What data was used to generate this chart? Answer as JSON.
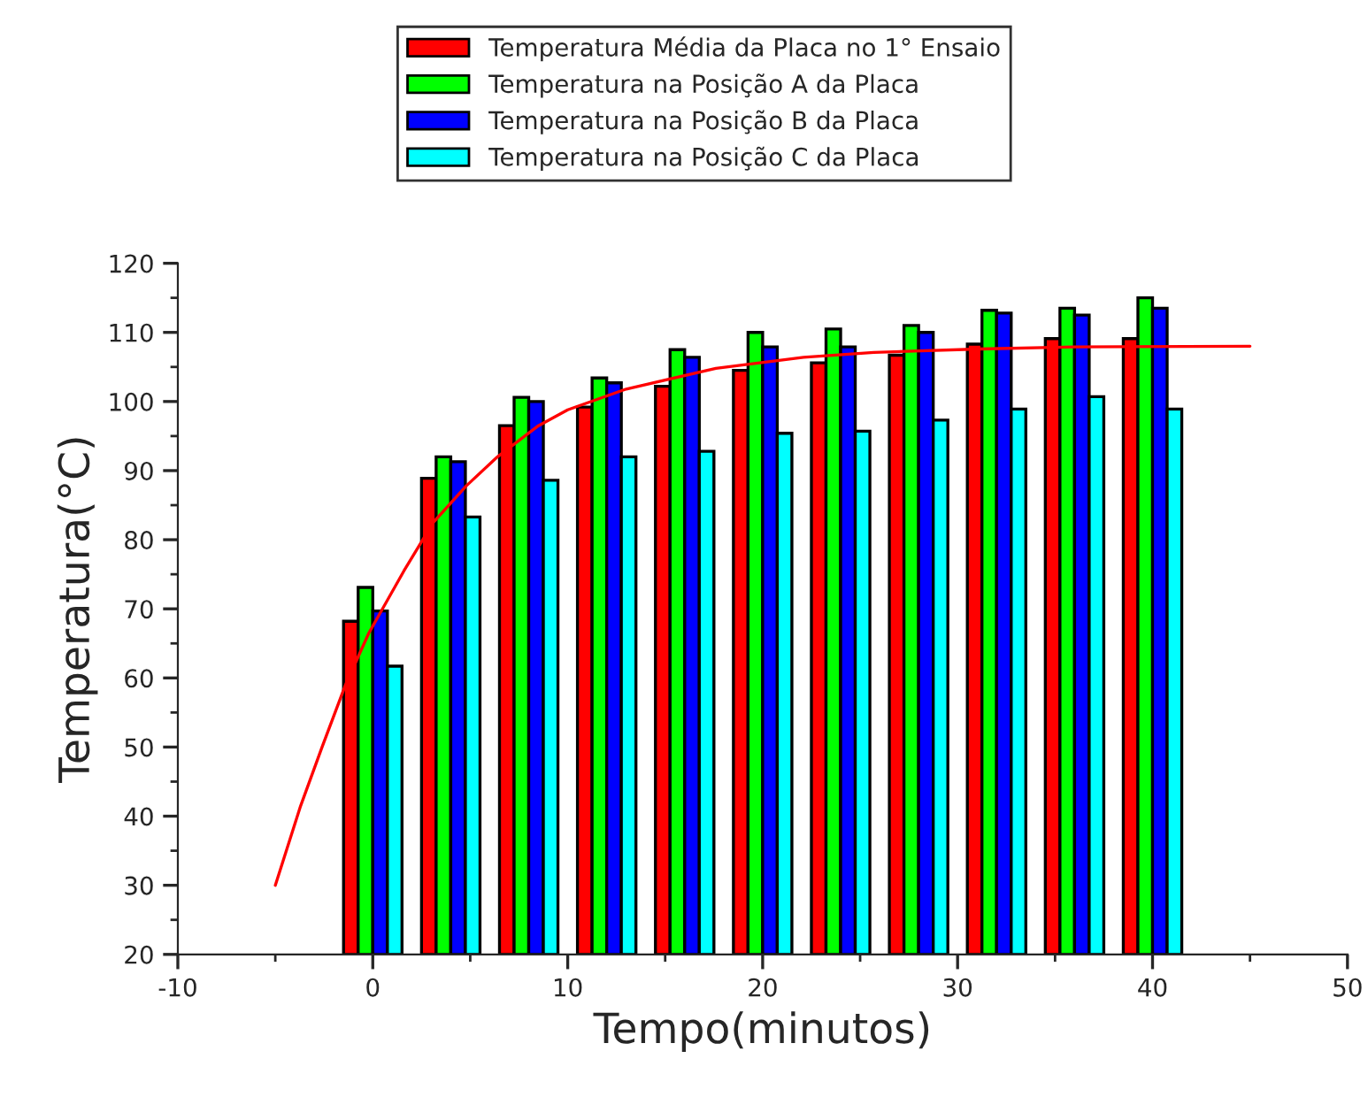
{
  "chart_data": {
    "type": "bar",
    "xlabel": "Tempo(minutos)",
    "ylabel": "Temperatura(°C)",
    "x": [
      0,
      4,
      8,
      12,
      16,
      20,
      24,
      28,
      32,
      36,
      40
    ],
    "series": [
      {
        "name": "Temperatura Média da Placa no 1° Ensaio",
        "color": "#ff0000",
        "values": [
          68.2,
          88.9,
          96.5,
          99.2,
          102.2,
          104.5,
          105.6,
          106.7,
          108.3,
          109.1,
          109.1
        ]
      },
      {
        "name": "Temperatura na Posição A da Placa",
        "color": "#00ff00",
        "values": [
          73.1,
          92.0,
          100.6,
          103.4,
          107.5,
          110.0,
          110.5,
          111.0,
          113.2,
          113.5,
          115.0
        ]
      },
      {
        "name": "Temperatura na Posição B da Placa",
        "color": "#0000ff",
        "values": [
          69.7,
          91.3,
          100.0,
          102.7,
          106.4,
          107.9,
          107.9,
          110.0,
          112.8,
          112.5,
          113.5
        ]
      },
      {
        "name": "Temperatura na Posição C da Placa",
        "color": "#00ffff",
        "values": [
          61.7,
          83.3,
          88.6,
          92.0,
          92.8,
          95.4,
          95.7,
          97.3,
          98.9,
          100.7,
          98.9
        ]
      },
      {
        "type": "line",
        "color": "#ff0000",
        "x": [
          -5,
          -3.7,
          -2.6,
          -1.4,
          -0.2,
          1.6,
          3.1,
          4.8,
          6.4,
          8.5,
          10,
          13,
          17.6,
          22.1,
          25.7,
          31.1,
          36,
          45
        ],
        "values": [
          30,
          41.5,
          50,
          59,
          66.5,
          75.5,
          82.5,
          87.8,
          92,
          96.5,
          98.8,
          101.8,
          104.8,
          106.4,
          107.1,
          107.6,
          107.9,
          108
        ]
      }
    ],
    "xlim": [
      -10,
      50
    ],
    "xticks": [
      -10,
      0,
      10,
      20,
      30,
      40,
      50
    ],
    "ylim": [
      20,
      120
    ],
    "yticks": [
      20,
      30,
      40,
      50,
      60,
      70,
      80,
      90,
      100,
      110,
      120
    ],
    "grid": false,
    "legend": "top"
  }
}
